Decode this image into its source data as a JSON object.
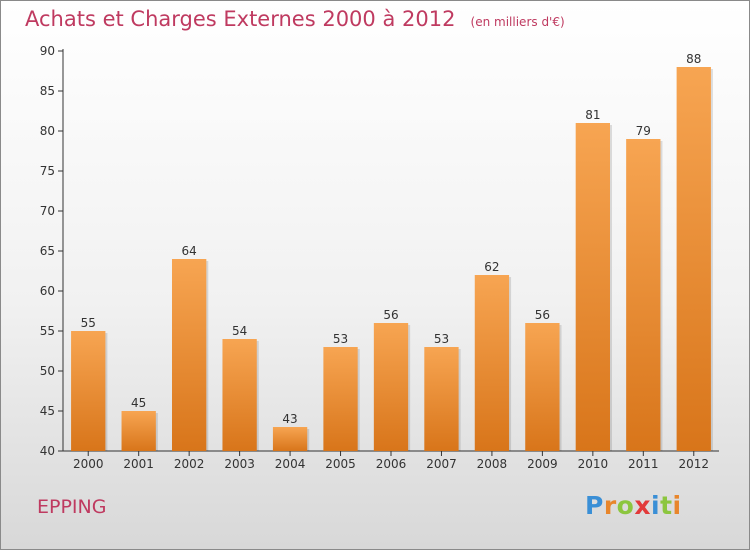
{
  "chart_data": {
    "type": "bar",
    "title": "Achats et Charges Externes 2000 à 2012",
    "subtitle": "(en milliers d'€)",
    "categories": [
      "2000",
      "2001",
      "2002",
      "2003",
      "2004",
      "2005",
      "2006",
      "2007",
      "2008",
      "2009",
      "2010",
      "2011",
      "2012"
    ],
    "values": [
      55,
      45,
      64,
      54,
      43,
      53,
      56,
      53,
      62,
      56,
      81,
      79,
      88
    ],
    "ylim": [
      40,
      90
    ],
    "yticks": [
      40,
      45,
      50,
      55,
      60,
      65,
      70,
      75,
      80,
      85,
      90
    ],
    "xlabel": "",
    "ylabel": "",
    "grid": false,
    "bar_color_top": "#f7a552",
    "bar_color_bottom": "#d8751a"
  },
  "footer": {
    "commune": "EPPING",
    "logo_letters": [
      {
        "ch": "P",
        "color": "#3a8fd6"
      },
      {
        "ch": "r",
        "color": "#e8862b"
      },
      {
        "ch": "o",
        "color": "#8cc63f"
      },
      {
        "ch": "x",
        "color": "#e23a3a"
      },
      {
        "ch": "i",
        "color": "#3a8fd6"
      },
      {
        "ch": "t",
        "color": "#8cc63f"
      },
      {
        "ch": "i",
        "color": "#e8862b"
      }
    ]
  },
  "colors": {
    "title": "#bf3a60",
    "axis": "#333333",
    "text": "#333333"
  }
}
